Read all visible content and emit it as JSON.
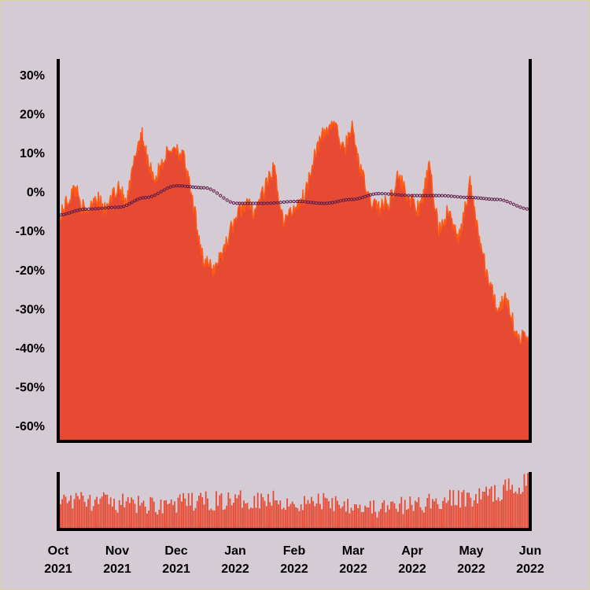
{
  "chart_data": {
    "type": "area",
    "title": "",
    "xlabel": "",
    "ylabel": "",
    "colors": {
      "background": "#d5cbd4",
      "area_fill": "#e64a33",
      "area_edge": "#ff5a14",
      "trend_markers": "#5a1a4a",
      "volume": "#e64a33"
    },
    "ylim": [
      -64,
      34
    ],
    "y_ticks": [
      "30%",
      "20%",
      "10%",
      "0%",
      "-10%",
      "-20%",
      "-30%",
      "-40%",
      "-50%",
      "-60%"
    ],
    "x_ticks": [
      {
        "month": "Oct",
        "year": "2021"
      },
      {
        "month": "Nov",
        "year": "2021"
      },
      {
        "month": "Dec",
        "year": "2021"
      },
      {
        "month": "Jan",
        "year": "2022"
      },
      {
        "month": "Feb",
        "year": "2022"
      },
      {
        "month": "Mar",
        "year": "2022"
      },
      {
        "month": "Apr",
        "year": "2022"
      },
      {
        "month": "May",
        "year": "2022"
      },
      {
        "month": "Jun",
        "year": "2022"
      }
    ],
    "x_range": [
      "2021-10-01",
      "2022-06-01"
    ],
    "series": [
      {
        "kind": "cumulative_return_area",
        "x": [
          "2021-10-01",
          "2021-10-05",
          "2021-10-10",
          "2021-10-15",
          "2021-10-20",
          "2021-10-25",
          "2021-11-01",
          "2021-11-05",
          "2021-11-10",
          "2021-11-13",
          "2021-11-16",
          "2021-11-20",
          "2021-11-25",
          "2021-11-30",
          "2021-12-05",
          "2021-12-10",
          "2021-12-15",
          "2021-12-20",
          "2021-12-25",
          "2021-12-31",
          "2022-01-05",
          "2022-01-10",
          "2022-01-15",
          "2022-01-20",
          "2022-01-25",
          "2022-02-01",
          "2022-02-05",
          "2022-02-10",
          "2022-02-15",
          "2022-02-20",
          "2022-02-25",
          "2022-03-01",
          "2022-03-05",
          "2022-03-10",
          "2022-03-15",
          "2022-03-20",
          "2022-03-25",
          "2022-03-31",
          "2022-04-05",
          "2022-04-10",
          "2022-04-15",
          "2022-04-20",
          "2022-04-25",
          "2022-05-01",
          "2022-05-05",
          "2022-05-10",
          "2022-05-15",
          "2022-05-20",
          "2022-05-25",
          "2022-06-01"
        ],
        "values": [
          -8,
          -3,
          1,
          -6,
          -1,
          -5,
          2,
          -4,
          10,
          15,
          8,
          3,
          9,
          12,
          8,
          -5,
          -18,
          -20,
          -15,
          -7,
          -3,
          -5,
          0,
          6,
          -8,
          -3,
          -1,
          10,
          15,
          18,
          10,
          17,
          7,
          -2,
          -4,
          -3,
          4,
          -2,
          -5,
          6,
          -10,
          -5,
          -13,
          2,
          -10,
          -22,
          -30,
          -27,
          -37,
          -38
        ]
      },
      {
        "kind": "trend_markers",
        "x": [
          "2021-10-01",
          "2021-10-15",
          "2021-11-01",
          "2021-11-15",
          "2021-12-01",
          "2021-12-15",
          "2022-01-01",
          "2022-01-15",
          "2022-02-01",
          "2022-02-15",
          "2022-03-01",
          "2022-03-15",
          "2022-04-01",
          "2022-04-15",
          "2022-05-01",
          "2022-05-15",
          "2022-06-01"
        ],
        "values": [
          -6,
          -4.5,
          -4,
          -1.5,
          1.5,
          1,
          -3,
          -3,
          -2.5,
          -3,
          -2,
          -0.5,
          -1,
          -1,
          -1.5,
          -2,
          -4.5
        ]
      },
      {
        "kind": "volume_bars",
        "x": [
          "2021-10-01",
          "2021-10-15",
          "2021-11-01",
          "2021-11-15",
          "2021-12-01",
          "2021-12-15",
          "2022-01-01",
          "2022-01-15",
          "2022-02-01",
          "2022-02-15",
          "2022-03-01",
          "2022-03-15",
          "2022-04-01",
          "2022-04-15",
          "2022-05-01",
          "2022-05-15",
          "2022-06-01"
        ],
        "values": [
          0.55,
          0.5,
          0.45,
          0.42,
          0.45,
          0.5,
          0.5,
          0.55,
          0.45,
          0.5,
          0.45,
          0.35,
          0.42,
          0.5,
          0.55,
          0.65,
          0.85
        ]
      }
    ]
  }
}
